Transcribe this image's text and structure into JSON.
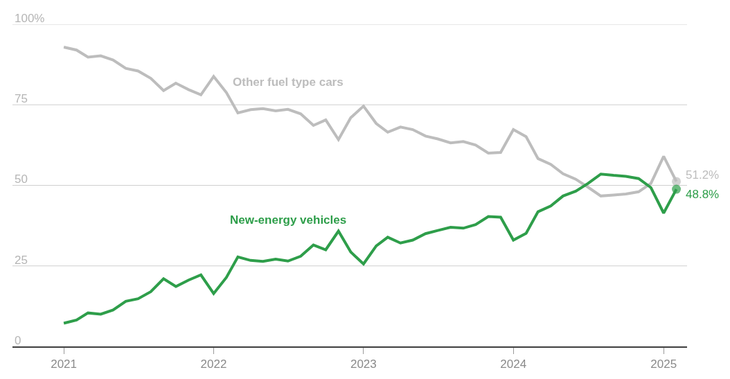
{
  "chart_data": {
    "type": "line",
    "x": [
      "2021-01",
      "2021-02",
      "2021-03",
      "2021-04",
      "2021-05",
      "2021-06",
      "2021-07",
      "2021-08",
      "2021-09",
      "2021-10",
      "2021-11",
      "2021-12",
      "2022-01",
      "2022-02",
      "2022-03",
      "2022-04",
      "2022-05",
      "2022-06",
      "2022-07",
      "2022-08",
      "2022-09",
      "2022-10",
      "2022-11",
      "2022-12",
      "2023-01",
      "2023-02",
      "2023-03",
      "2023-04",
      "2023-05",
      "2023-06",
      "2023-07",
      "2023-08",
      "2023-09",
      "2023-10",
      "2023-11",
      "2023-12",
      "2024-01",
      "2024-02",
      "2024-03",
      "2024-04",
      "2024-05",
      "2024-06",
      "2024-07",
      "2024-08",
      "2024-09",
      "2024-10",
      "2024-11",
      "2024-12",
      "2025-01",
      "2025-02"
    ],
    "series": [
      {
        "name": "Other fuel type cars",
        "color": "#bdbdbd",
        "values": [
          92.9,
          92.0,
          89.8,
          90.2,
          88.9,
          86.3,
          85.5,
          83.2,
          79.4,
          81.7,
          79.7,
          78.1,
          83.8,
          78.8,
          72.5,
          73.5,
          73.8,
          73.1,
          73.6,
          72.2,
          68.6,
          70.3,
          64.2,
          71.0,
          74.6,
          69.2,
          66.5,
          68.1,
          67.3,
          65.3,
          64.4,
          63.2,
          63.6,
          62.5,
          60.0,
          60.2,
          67.3,
          65.1,
          58.3,
          56.5,
          53.6,
          51.9,
          49.4,
          46.7,
          47.0,
          47.3,
          48.0,
          50.6,
          59.0,
          51.2
        ],
        "value_labels": [
          null,
          null,
          null,
          null,
          null,
          null,
          null,
          null,
          null,
          null,
          null,
          null,
          null,
          null,
          null,
          null,
          null,
          null,
          null,
          null,
          null,
          null,
          null,
          null,
          null,
          null,
          null,
          null,
          null,
          null,
          null,
          null,
          null,
          null,
          null,
          null,
          null,
          null,
          null,
          null,
          null,
          null,
          null,
          null,
          null,
          null,
          null,
          null,
          null,
          "51.2%"
        ]
      },
      {
        "name": "New-energy vehicles",
        "color": "#2e9e4a",
        "values": [
          7.2,
          8.2,
          10.4,
          10.0,
          11.3,
          14.0,
          14.8,
          17.0,
          21.0,
          18.6,
          20.6,
          22.2,
          16.4,
          21.4,
          27.8,
          26.7,
          26.4,
          27.1,
          26.5,
          28.0,
          31.5,
          30.0,
          35.8,
          29.3,
          25.6,
          31.2,
          33.9,
          32.1,
          33.0,
          35.0,
          36.0,
          37.0,
          36.7,
          37.8,
          40.3,
          40.1,
          33.0,
          35.1,
          41.8,
          43.6,
          46.7,
          48.2,
          50.6,
          53.5,
          53.1,
          52.8,
          52.1,
          49.3,
          41.4,
          48.8
        ],
        "value_labels": [
          null,
          null,
          null,
          null,
          null,
          null,
          null,
          null,
          null,
          null,
          null,
          null,
          null,
          null,
          null,
          null,
          null,
          null,
          null,
          null,
          null,
          null,
          null,
          null,
          null,
          null,
          null,
          null,
          null,
          null,
          null,
          null,
          null,
          null,
          null,
          null,
          null,
          null,
          null,
          null,
          null,
          null,
          null,
          null,
          null,
          null,
          null,
          null,
          null,
          "48.8%"
        ]
      }
    ],
    "xlim": [
      "2020-08-29",
      "2025-02-27"
    ],
    "xticks": [
      "2021",
      "2022",
      "2023",
      "2024",
      "2025"
    ],
    "ylim": [
      0,
      100
    ],
    "yticks": [
      {
        "value": 100,
        "label": "100%"
      },
      75,
      50,
      25,
      0
    ],
    "grid": "y",
    "legend": false,
    "line_style": "solid"
  }
}
